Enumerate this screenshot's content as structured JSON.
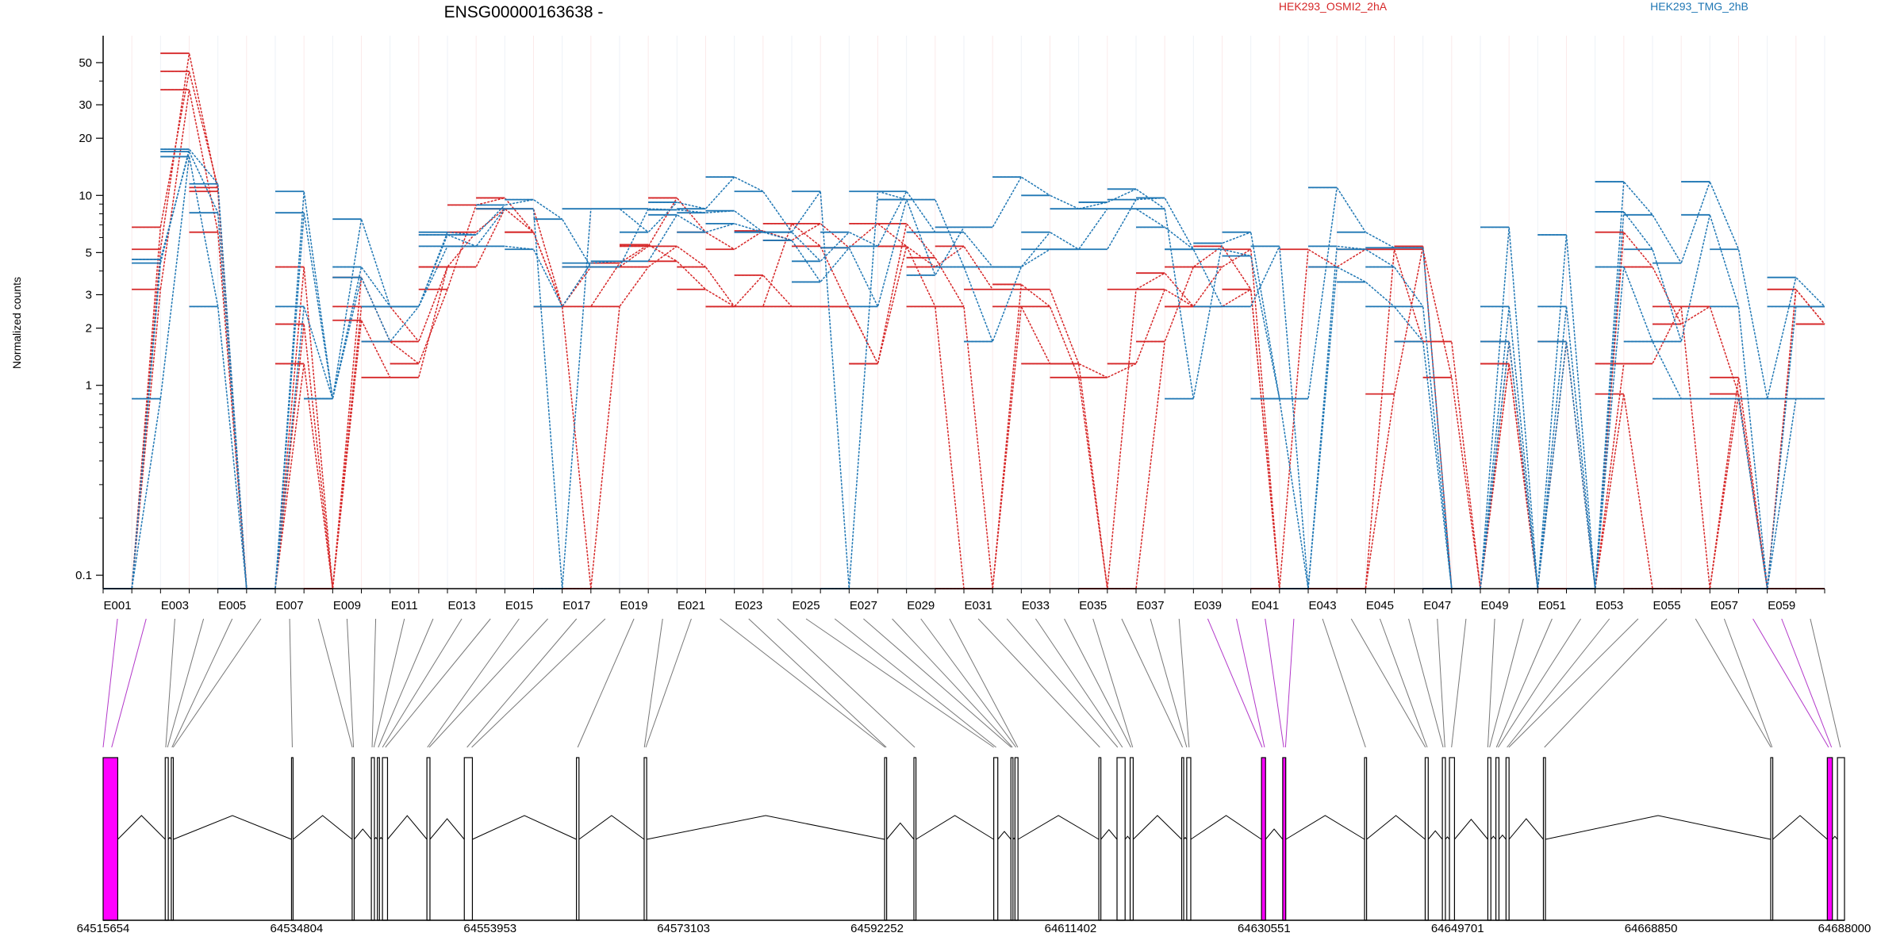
{
  "chart_data": {
    "type": "line",
    "title": "ENSG00000163638 -",
    "ylabel": "Normalized counts",
    "y_scale": "log",
    "ylim": [
      0.085,
      60
    ],
    "y_ticks": [
      {
        "v": 0.1,
        "label": "0.1"
      },
      {
        "v": 1,
        "label": "1"
      },
      {
        "v": 2,
        "label": "2"
      },
      {
        "v": 3,
        "label": "3"
      },
      {
        "v": 5,
        "label": "5"
      },
      {
        "v": 10,
        "label": "10"
      },
      {
        "v": 20,
        "label": "20"
      },
      {
        "v": 30,
        "label": "30"
      },
      {
        "v": 50,
        "label": "50"
      }
    ],
    "x_labels": [
      "E001",
      "E003",
      "E005",
      "E007",
      "E009",
      "E011",
      "E013",
      "E015",
      "E017",
      "E019",
      "E021",
      "E023",
      "E025",
      "E027",
      "E029",
      "E031",
      "E033",
      "E035",
      "E037",
      "E039",
      "E041",
      "E043",
      "E045",
      "E047",
      "E049",
      "E051",
      "E053",
      "E055",
      "E057",
      "E059"
    ],
    "legend": [
      "HEK293_OSMI2_2hA",
      "HEK293_TMG_2hB"
    ],
    "legend_placement": "top",
    "exon_count": 60,
    "series": [
      {
        "group": "HEK293_OSMI2_2hA",
        "color": "#d62728",
        "values": [
          0.085,
          6.8,
          45,
          11,
          0.085,
          0.085,
          4.2,
          0.085,
          2.2,
          1.1,
          1.1,
          4.2,
          4.2,
          8.5,
          8.5,
          2.6,
          0.085,
          2.6,
          4.2,
          5.4,
          4.2,
          2.6,
          3.8,
          2.6,
          2.6,
          2.6,
          1.3,
          5.4,
          2.6,
          0.085,
          0.085,
          2.6,
          1.3,
          1.3,
          0.085,
          0.085,
          1.7,
          4.2,
          5.4,
          3.2,
          0.085,
          0.085,
          0.085,
          0.085,
          0.9,
          5.4,
          0.085,
          0.085,
          1.3,
          0.085,
          0.085,
          0.085,
          0.9,
          0.085,
          0.085,
          0.085,
          0.9,
          0.085,
          0.085,
          0.085
        ]
      },
      {
        "group": "HEK293_OSMI2_2hA",
        "color": "#d62728",
        "values": [
          0.085,
          3.2,
          36,
          6.4,
          0.085,
          0.085,
          2.1,
          0.085,
          3.7,
          1.7,
          1.3,
          3.2,
          8.9,
          9.7,
          6.4,
          2.6,
          2.6,
          4.4,
          5.5,
          4.5,
          3.2,
          2.6,
          2.6,
          7.1,
          5.4,
          2.6,
          1.3,
          7.1,
          4.7,
          2.6,
          0.085,
          3.4,
          2.6,
          1.1,
          0.085,
          3.2,
          3.9,
          2.6,
          4.2,
          5.2,
          0.085,
          0.085,
          0.085,
          0.085,
          5.2,
          5.2,
          1.1,
          0.085,
          1.3,
          0.085,
          0.085,
          0.085,
          1.3,
          1.3,
          2.6,
          0.085,
          1.1,
          0.085,
          3.2,
          2.1
        ]
      },
      {
        "group": "HEK293_OSMI2_2hA",
        "color": "#d62728",
        "values": [
          0.085,
          5.2,
          56,
          10.5,
          0.085,
          0.085,
          1.3,
          0.085,
          2.6,
          2.6,
          1.7,
          4.2,
          6.4,
          8.5,
          6.4,
          2.6,
          4.2,
          4.2,
          5.4,
          9.7,
          6.4,
          5.2,
          6.5,
          5.8,
          7.1,
          5.3,
          7.1,
          5.4,
          4.2,
          5.4,
          3.2,
          3.2,
          3.2,
          1.3,
          1.1,
          1.3,
          3.2,
          2.6,
          2.6,
          3.2,
          0.085,
          5.2,
          4.2,
          5.2,
          5.2,
          1.7,
          1.7,
          0.085,
          1.7,
          0.085,
          1.7,
          0.085,
          6.4,
          4.2,
          2.1,
          2.6,
          0.9,
          0.085,
          3.2,
          2.1
        ]
      },
      {
        "group": "HEK293_TMG_2hB",
        "color": "#1f77b4",
        "values": [
          0.085,
          0.85,
          16,
          2.6,
          0.085,
          0.085,
          2.6,
          0.85,
          3.7,
          1.7,
          2.6,
          5.4,
          5.4,
          5.4,
          5.2,
          2.6,
          4.4,
          4.5,
          4.5,
          7.9,
          6.4,
          7.1,
          6.4,
          5.8,
          3.5,
          5.3,
          2.6,
          9.5,
          9.5,
          4.2,
          1.7,
          4.2,
          5.2,
          5.2,
          8.5,
          8.5,
          6.8,
          5.2,
          5.2,
          4.8,
          0.85,
          0.085,
          4.2,
          3.5,
          2.6,
          1.7,
          0.085,
          0.085,
          1.7,
          0.085,
          1.7,
          0.085,
          4.2,
          1.7,
          0.85,
          0.85,
          0.85,
          0.085,
          0.85,
          0.85
        ]
      },
      {
        "group": "HEK293_TMG_2hB",
        "color": "#1f77b4",
        "values": [
          0.085,
          4.4,
          17.5,
          11.5,
          0.085,
          0.085,
          10.5,
          0.85,
          4.2,
          2.6,
          2.6,
          6.2,
          5.4,
          8.5,
          8.5,
          0.085,
          8.5,
          8.5,
          6.4,
          9.2,
          8.5,
          12.5,
          10.5,
          6.4,
          10.5,
          0.085,
          10.5,
          9.5,
          3.8,
          6.8,
          6.8,
          12.5,
          10,
          8.5,
          9.2,
          10.8,
          8.5,
          0.85,
          5.6,
          6.4,
          0.85,
          0.85,
          11,
          6.4,
          5.3,
          5.3,
          0.085,
          0.085,
          6.8,
          0.085,
          6.2,
          0.085,
          11.8,
          7.9,
          4.4,
          11.8,
          5.2,
          0.85,
          3.7,
          2.6
        ]
      },
      {
        "group": "HEK293_TMG_2hB",
        "color": "#1f77b4",
        "values": [
          0.085,
          4.6,
          17,
          8.1,
          0.085,
          0.085,
          8.1,
          0.85,
          7.5,
          2.6,
          2.6,
          6.4,
          6.2,
          8.9,
          9.5,
          7.5,
          4.2,
          4.2,
          8.5,
          8.4,
          8.1,
          8.3,
          6.4,
          6.4,
          4.5,
          6.4,
          5.4,
          10.5,
          6.4,
          6.4,
          4.2,
          4.2,
          6.4,
          5.2,
          5.2,
          9.5,
          9.7,
          5.2,
          2.6,
          2.6,
          5.4,
          0.085,
          5.4,
          5.2,
          4.2,
          2.6,
          0.085,
          0.085,
          2.6,
          0.085,
          2.6,
          0.085,
          8.2,
          5.2,
          1.7,
          7.9,
          2.6,
          0.085,
          2.6,
          2.6
        ]
      }
    ],
    "genomic_axis": {
      "range": [
        64515654,
        64688000
      ],
      "ticks": [
        64515654,
        64534804,
        64553953,
        64573103,
        64592252,
        64611402,
        64630551,
        64649701,
        64668850,
        64688000
      ]
    },
    "exons": [
      {
        "s": 64515654,
        "e": 64517100,
        "h": true
      },
      {
        "s": 64521800,
        "e": 64522100
      },
      {
        "s": 64522400,
        "e": 64522600
      },
      {
        "s": 64534300,
        "e": 64534450
      },
      {
        "s": 64540300,
        "e": 64540500
      },
      {
        "s": 64542200,
        "e": 64542500
      },
      {
        "s": 64542800,
        "e": 64543000
      },
      {
        "s": 64543300,
        "e": 64543800
      },
      {
        "s": 64547700,
        "e": 64548000
      },
      {
        "s": 64551400,
        "e": 64552200
      },
      {
        "s": 64562500,
        "e": 64562750
      },
      {
        "s": 64569200,
        "e": 64569450
      },
      {
        "s": 64593000,
        "e": 64593200
      },
      {
        "s": 64595900,
        "e": 64596100
      },
      {
        "s": 64603800,
        "e": 64604200
      },
      {
        "s": 64605500,
        "e": 64605700
      },
      {
        "s": 64605900,
        "e": 64606200
      },
      {
        "s": 64614200,
        "e": 64614400
      },
      {
        "s": 64616000,
        "e": 64616800
      },
      {
        "s": 64617300,
        "e": 64617600
      },
      {
        "s": 64622400,
        "e": 64622600
      },
      {
        "s": 64622900,
        "e": 64623300
      },
      {
        "s": 64630300,
        "e": 64630700,
        "h": true
      },
      {
        "s": 64632400,
        "e": 64632700,
        "h": true
      },
      {
        "s": 64640500,
        "e": 64640700
      },
      {
        "s": 64646500,
        "e": 64646800
      },
      {
        "s": 64648200,
        "e": 64648500
      },
      {
        "s": 64648900,
        "e": 64649400
      },
      {
        "s": 64652700,
        "e": 64653000
      },
      {
        "s": 64653500,
        "e": 64653800
      },
      {
        "s": 64654500,
        "e": 64654800
      },
      {
        "s": 64658200,
        "e": 64658400
      },
      {
        "s": 64680700,
        "e": 64680900
      },
      {
        "s": 64686300,
        "e": 64686800,
        "h": true
      },
      {
        "s": 64687300,
        "e": 64688000
      }
    ]
  }
}
